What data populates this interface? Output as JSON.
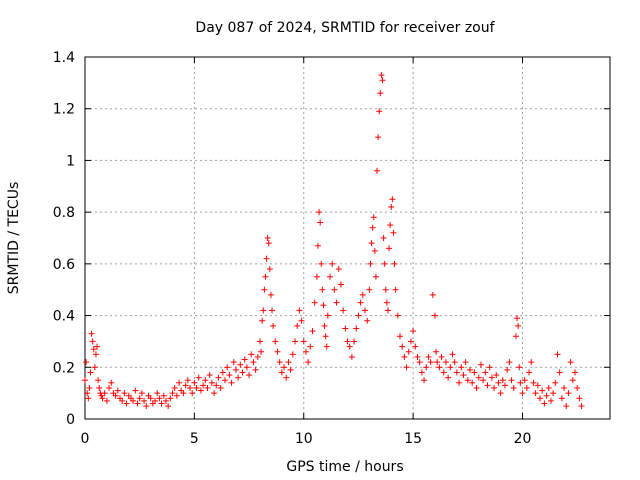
{
  "chart_data": {
    "type": "scatter",
    "title": "Day 087 of 2024, SRMTID for receiver zouf",
    "xlabel": "GPS time / hours",
    "ylabel": "SRMTID / TECUs",
    "xlim": [
      0,
      24
    ],
    "ylim": [
      0,
      1.4
    ],
    "xticks": [
      0,
      5,
      10,
      15,
      20
    ],
    "xtick_labels": [
      "0",
      "5",
      "10",
      "15",
      "20"
    ],
    "yticks": [
      0,
      0.2,
      0.4,
      0.6,
      0.8,
      1.0,
      1.2,
      1.4
    ],
    "ytick_labels": [
      "0",
      "0.2",
      "0.4",
      "0.6",
      "0.8",
      "1",
      "1.2",
      "1.4"
    ],
    "grid": true,
    "marker": "+",
    "color": "#ff0000",
    "series": [
      {
        "name": "SRMTID",
        "x": [
          0.0,
          0.05,
          0.1,
          0.15,
          0.2,
          0.25,
          0.3,
          0.35,
          0.4,
          0.45,
          0.5,
          0.55,
          0.6,
          0.65,
          0.7,
          0.75,
          0.8,
          0.9,
          1.0,
          1.1,
          1.2,
          1.3,
          1.4,
          1.5,
          1.6,
          1.7,
          1.8,
          1.9,
          2.0,
          2.1,
          2.2,
          2.3,
          2.4,
          2.5,
          2.6,
          2.7,
          2.8,
          2.9,
          3.0,
          3.1,
          3.2,
          3.3,
          3.4,
          3.5,
          3.6,
          3.7,
          3.8,
          3.9,
          4.0,
          4.1,
          4.2,
          4.3,
          4.4,
          4.5,
          4.6,
          4.7,
          4.8,
          4.9,
          5.0,
          5.1,
          5.2,
          5.3,
          5.4,
          5.5,
          5.6,
          5.7,
          5.8,
          5.9,
          6.0,
          6.1,
          6.2,
          6.3,
          6.4,
          6.5,
          6.6,
          6.7,
          6.8,
          6.9,
          7.0,
          7.1,
          7.2,
          7.3,
          7.4,
          7.5,
          7.6,
          7.7,
          7.8,
          7.9,
          8.0,
          8.05,
          8.1,
          8.15,
          8.2,
          8.25,
          8.3,
          8.35,
          8.4,
          8.45,
          8.5,
          8.55,
          8.6,
          8.7,
          8.8,
          8.9,
          9.0,
          9.1,
          9.2,
          9.3,
          9.4,
          9.5,
          9.6,
          9.7,
          9.8,
          9.9,
          10.0,
          10.1,
          10.2,
          10.3,
          10.4,
          10.5,
          10.6,
          10.65,
          10.7,
          10.75,
          10.8,
          10.85,
          10.9,
          10.95,
          11.0,
          11.05,
          11.1,
          11.2,
          11.3,
          11.4,
          11.5,
          11.6,
          11.7,
          11.8,
          11.9,
          12.0,
          12.1,
          12.2,
          12.3,
          12.4,
          12.5,
          12.6,
          12.7,
          12.8,
          12.9,
          13.0,
          13.05,
          13.1,
          13.15,
          13.2,
          13.25,
          13.3,
          13.35,
          13.4,
          13.45,
          13.5,
          13.55,
          13.6,
          13.65,
          13.7,
          13.75,
          13.8,
          13.85,
          13.9,
          13.95,
          14.0,
          14.05,
          14.1,
          14.15,
          14.2,
          14.3,
          14.4,
          14.5,
          14.6,
          14.7,
          14.8,
          14.9,
          15.0,
          15.1,
          15.2,
          15.3,
          15.4,
          15.5,
          15.6,
          15.7,
          15.8,
          15.9,
          16.0,
          16.05,
          16.1,
          16.2,
          16.3,
          16.4,
          16.5,
          16.6,
          16.7,
          16.8,
          16.9,
          17.0,
          17.1,
          17.2,
          17.3,
          17.4,
          17.5,
          17.6,
          17.7,
          17.8,
          17.9,
          18.0,
          18.1,
          18.2,
          18.3,
          18.4,
          18.5,
          18.6,
          18.7,
          18.8,
          18.9,
          19.0,
          19.1,
          19.2,
          19.3,
          19.4,
          19.5,
          19.6,
          19.7,
          19.75,
          19.8,
          19.85,
          19.9,
          20.0,
          20.1,
          20.2,
          20.3,
          20.4,
          20.5,
          20.6,
          20.7,
          20.8,
          20.9,
          21.0,
          21.1,
          21.2,
          21.3,
          21.4,
          21.5,
          21.6,
          21.7,
          21.8,
          21.9,
          22.0,
          22.1,
          22.2,
          22.3,
          22.4,
          22.5,
          22.6,
          22.7
        ],
        "y": [
          0.15,
          0.22,
          0.1,
          0.08,
          0.12,
          0.18,
          0.33,
          0.3,
          0.27,
          0.2,
          0.25,
          0.28,
          0.15,
          0.12,
          0.1,
          0.09,
          0.08,
          0.1,
          0.07,
          0.12,
          0.14,
          0.1,
          0.09,
          0.11,
          0.08,
          0.07,
          0.1,
          0.06,
          0.09,
          0.08,
          0.07,
          0.11,
          0.06,
          0.08,
          0.1,
          0.07,
          0.05,
          0.09,
          0.08,
          0.06,
          0.07,
          0.1,
          0.08,
          0.06,
          0.09,
          0.07,
          0.05,
          0.08,
          0.1,
          0.12,
          0.09,
          0.14,
          0.11,
          0.1,
          0.13,
          0.15,
          0.12,
          0.1,
          0.14,
          0.12,
          0.16,
          0.11,
          0.13,
          0.15,
          0.12,
          0.17,
          0.14,
          0.1,
          0.13,
          0.16,
          0.12,
          0.18,
          0.15,
          0.2,
          0.17,
          0.14,
          0.22,
          0.19,
          0.16,
          0.21,
          0.18,
          0.23,
          0.2,
          0.17,
          0.25,
          0.22,
          0.19,
          0.24,
          0.3,
          0.26,
          0.38,
          0.42,
          0.5,
          0.55,
          0.62,
          0.7,
          0.68,
          0.58,
          0.48,
          0.42,
          0.36,
          0.3,
          0.26,
          0.22,
          0.18,
          0.2,
          0.16,
          0.22,
          0.19,
          0.25,
          0.3,
          0.36,
          0.42,
          0.38,
          0.3,
          0.26,
          0.22,
          0.28,
          0.34,
          0.45,
          0.55,
          0.67,
          0.8,
          0.76,
          0.6,
          0.5,
          0.44,
          0.36,
          0.32,
          0.28,
          0.4,
          0.55,
          0.6,
          0.5,
          0.45,
          0.58,
          0.52,
          0.42,
          0.35,
          0.3,
          0.28,
          0.24,
          0.3,
          0.35,
          0.4,
          0.45,
          0.48,
          0.42,
          0.38,
          0.5,
          0.6,
          0.68,
          0.74,
          0.78,
          0.65,
          0.55,
          0.96,
          1.09,
          1.19,
          1.26,
          1.33,
          1.31,
          0.7,
          0.6,
          0.5,
          0.45,
          0.42,
          0.66,
          0.75,
          0.82,
          0.85,
          0.72,
          0.6,
          0.5,
          0.4,
          0.32,
          0.28,
          0.24,
          0.2,
          0.26,
          0.3,
          0.34,
          0.28,
          0.24,
          0.22,
          0.18,
          0.15,
          0.2,
          0.24,
          0.22,
          0.48,
          0.4,
          0.26,
          0.22,
          0.2,
          0.24,
          0.18,
          0.22,
          0.16,
          0.2,
          0.25,
          0.22,
          0.18,
          0.14,
          0.2,
          0.17,
          0.22,
          0.15,
          0.19,
          0.14,
          0.18,
          0.12,
          0.16,
          0.21,
          0.15,
          0.18,
          0.13,
          0.2,
          0.16,
          0.12,
          0.17,
          0.14,
          0.1,
          0.15,
          0.13,
          0.19,
          0.22,
          0.15,
          0.12,
          0.32,
          0.39,
          0.36,
          0.2,
          0.14,
          0.1,
          0.15,
          0.12,
          0.18,
          0.22,
          0.14,
          0.1,
          0.13,
          0.08,
          0.11,
          0.06,
          0.09,
          0.12,
          0.07,
          0.1,
          0.14,
          0.25,
          0.18,
          0.08,
          0.12,
          0.05,
          0.1,
          0.22,
          0.15,
          0.18,
          0.12,
          0.08,
          0.05
        ]
      }
    ]
  }
}
